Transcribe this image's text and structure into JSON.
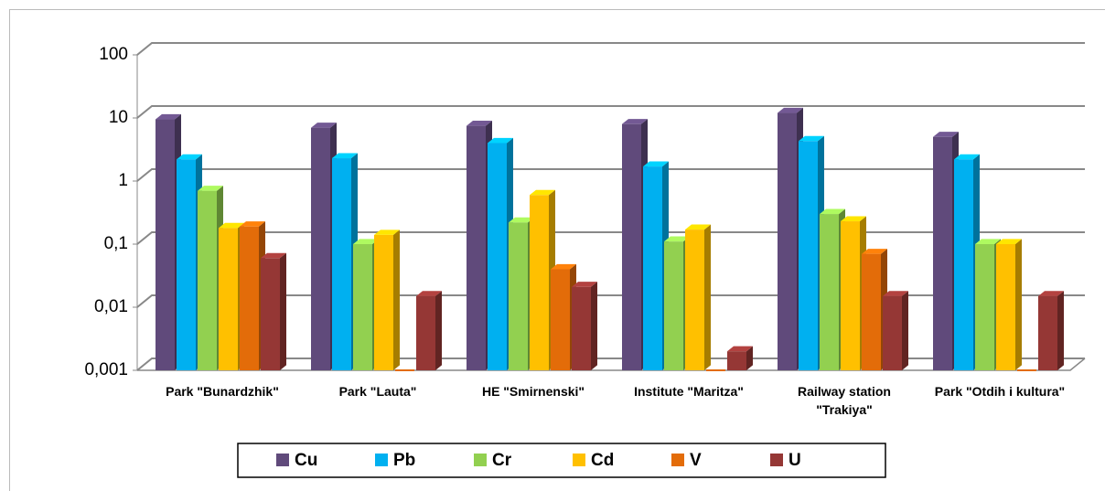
{
  "chart_data": {
    "type": "bar",
    "categories": [
      "Park \"Bunardzhik\"",
      "Park \"Lauta\"",
      "HE \"Smirnenski\"",
      "Institute \"Maritza\"",
      "Railway station \"Trakiya\"",
      "Park \"Otdih i kultura\""
    ],
    "series": [
      {
        "name": "Cu",
        "color": "#604a7b",
        "values": [
          9.5,
          7,
          7.5,
          8,
          12,
          5
        ]
      },
      {
        "name": "Pb",
        "color": "#00b0f0",
        "values": [
          2.2,
          2.3,
          4,
          1.7,
          4.3,
          2.2
        ]
      },
      {
        "name": "Cr",
        "color": "#92d050",
        "values": [
          0.7,
          0.1,
          0.22,
          0.11,
          0.3,
          0.1
        ]
      },
      {
        "name": "Cd",
        "color": "#ffc000",
        "values": [
          0.18,
          0.14,
          0.6,
          0.17,
          0.23,
          0.1
        ]
      },
      {
        "name": "V",
        "color": "#e36c09",
        "values": [
          0.19,
          null,
          0.04,
          null,
          0.07,
          null
        ]
      },
      {
        "name": "U",
        "color": "#953735",
        "values": [
          0.06,
          0.015,
          0.021,
          0.002,
          0.015,
          0.015
        ]
      }
    ],
    "log_scale": true,
    "ylim": [
      0.001,
      100
    ],
    "yticks": [
      {
        "value": 0.001,
        "label": "0,001"
      },
      {
        "value": 0.01,
        "label": "0,01"
      },
      {
        "value": 0.1,
        "label": "0,1"
      },
      1,
      10,
      100
    ],
    "grid": true,
    "legend": "bottom"
  }
}
